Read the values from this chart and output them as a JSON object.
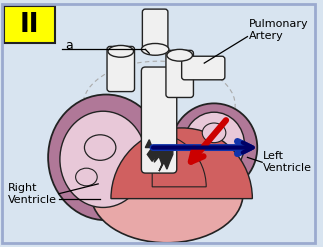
{
  "bg_color": "#d8e4f0",
  "border_color": "#9baacf",
  "title_box_color": "#ffff00",
  "title_text": "II",
  "title_text_color": "#000000",
  "label_a": "a",
  "label_pulmonary": "Pulmonary\nArtery",
  "label_right": "Right\nVentricle",
  "label_left": "Left\nVentricle",
  "heart_light_pink": "#f5d0d0",
  "heart_outline_color": "#222222",
  "rv_purple_outer": "#b07898",
  "rv_purple_inner": "#e8c8d8",
  "lv_red": "#d06060",
  "lv_pink": "#e8a8a8",
  "vessel_white": "#f0f0f0",
  "vessel_gray": "#cccccc",
  "septum_dark": "#2a2a2a",
  "dashed_gray": "#aaaaaa",
  "arrow_red": "#cc0000",
  "arrow_blue_dark": "#000066",
  "arrow_blue_light": "#2244cc"
}
